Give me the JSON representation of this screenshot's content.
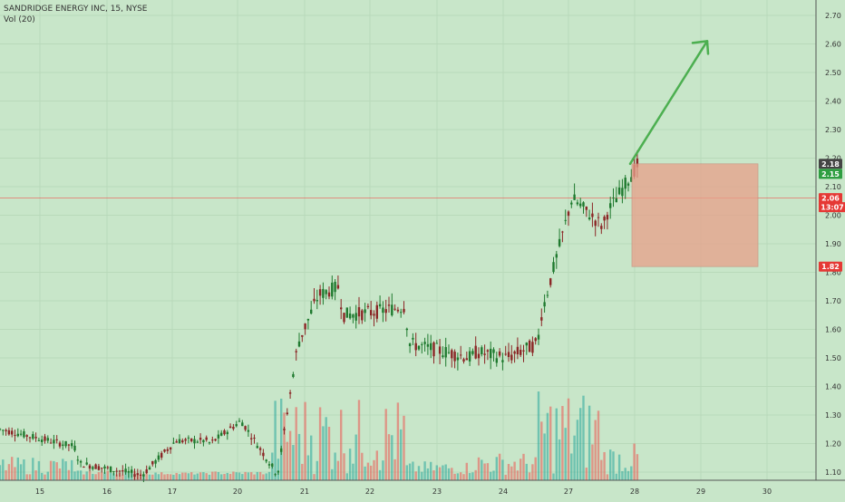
{
  "header": {
    "symbol_line": "SANDRIDGE ENERGY INC, 15, NYSE",
    "volume_line": "Vol (20)"
  },
  "colors": {
    "background": "#c8e6c9",
    "up": "#26a69a",
    "down": "#ef5350",
    "candle_up": "#1f7a2f",
    "candle_down": "#8b2626",
    "arrow": "#4caf50",
    "box_fill": "#e8a08a",
    "price_line": "#ef5350",
    "badge_green": "#2e9e41",
    "badge_red": "#e53935",
    "badge_dark": "#444444"
  },
  "chart_data": {
    "type": "candlestick",
    "symbol": "SANDRIDGE ENERGY INC",
    "interval": "15",
    "exchange": "NYSE",
    "y_axis": {
      "ticks": [
        "2.70",
        "2.60",
        "2.50",
        "2.40",
        "2.30",
        "2.20",
        "2.10",
        "2.00",
        "1.90",
        "1.80",
        "1.70",
        "1.60",
        "1.50",
        "1.40",
        "1.30",
        "1.20",
        "1.10"
      ],
      "range": [
        1.07,
        2.74
      ]
    },
    "x_axis": {
      "labels": [
        "15",
        "16",
        "17",
        "20",
        "21",
        "22",
        "23",
        "24",
        "27",
        "28",
        "29",
        "30"
      ]
    },
    "price_badges": [
      {
        "label": "2.18",
        "value": 2.18,
        "kind": "dark"
      },
      {
        "label": "2.15",
        "value": 2.145,
        "kind": "green"
      },
      {
        "label": "2.06",
        "value": 2.06,
        "kind": "red"
      },
      {
        "label": "13:07",
        "value": 2.028,
        "kind": "red"
      },
      {
        "label": "1.82",
        "value": 1.82,
        "kind": "red"
      }
    ],
    "current_price": 2.06,
    "annotations": {
      "projection_box": {
        "from_date": "28",
        "to_date": "30",
        "top": 2.18,
        "bottom": 1.82
      },
      "arrow": {
        "from": {
          "date": "28",
          "price": 2.18
        },
        "to": {
          "date": "29",
          "price": 2.61
        }
      }
    },
    "price_path": [
      {
        "day": "15",
        "price": 1.25
      },
      {
        "day": "15",
        "price": 1.19
      },
      {
        "day": "16",
        "price": 1.13
      },
      {
        "day": "16",
        "price": 1.09
      },
      {
        "day": "17",
        "price": 1.1
      },
      {
        "day": "17",
        "price": 1.21
      },
      {
        "day": "17",
        "price": 1.21
      },
      {
        "day": "20",
        "price": 1.2
      },
      {
        "day": "20",
        "price": 1.28
      },
      {
        "day": "20",
        "price": 1.12
      },
      {
        "day": "21",
        "price": 1.09
      },
      {
        "day": "21",
        "price": 1.55
      },
      {
        "day": "21",
        "price": 1.72
      },
      {
        "day": "21",
        "price": 1.75
      },
      {
        "day": "22",
        "price": 1.65
      },
      {
        "day": "22",
        "price": 1.66
      },
      {
        "day": "22",
        "price": 1.68
      },
      {
        "day": "23",
        "price": 1.55
      },
      {
        "day": "23",
        "price": 1.5
      },
      {
        "day": "24",
        "price": 1.52
      },
      {
        "day": "24",
        "price": 1.5
      },
      {
        "day": "24",
        "price": 1.55
      },
      {
        "day": "27",
        "price": 1.65
      },
      {
        "day": "27",
        "price": 2.06
      },
      {
        "day": "27",
        "price": 1.96
      },
      {
        "day": "28",
        "price": 2.01
      },
      {
        "day": "28",
        "price": 2.18
      },
      {
        "day": "28",
        "price": 2.06
      }
    ],
    "volume_profile": [
      {
        "day": "15",
        "level": 0.2
      },
      {
        "day": "16",
        "level": 0.05
      },
      {
        "day": "17",
        "level": 0.03
      },
      {
        "day": "20",
        "level": 0.04
      },
      {
        "day": "21",
        "level": 0.9
      },
      {
        "day": "22",
        "level": 0.85
      },
      {
        "day": "23",
        "level": 0.15
      },
      {
        "day": "24",
        "level": 0.25
      },
      {
        "day": "27",
        "level": 0.95
      },
      {
        "day": "28",
        "level": 0.35
      }
    ]
  }
}
